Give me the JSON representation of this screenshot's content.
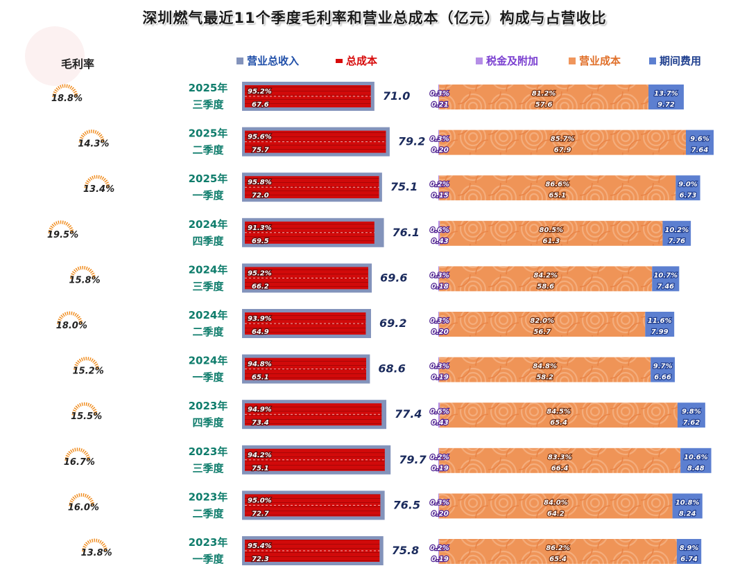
{
  "chart_data": {
    "type": "bar",
    "title": "深圳燃气最近11个季度毛利率和营业总成本（亿元）构成与占营收比",
    "gross_margin_header": "毛利率",
    "legend_left": [
      {
        "name": "营业总收入",
        "color": "#8393bb"
      },
      {
        "name": "总成本",
        "color": "#d70a0a"
      }
    ],
    "legend_right": [
      {
        "name": "税金及附加",
        "color": "#b58ee6"
      },
      {
        "name": "营业成本",
        "color": "#f0965c"
      },
      {
        "name": "期间费用",
        "color": "#5c7fd0"
      }
    ],
    "quarters": [
      {
        "year": "2025年",
        "season": "三季度",
        "gross_margin": "18.8%",
        "gm_value": 18.8,
        "revenue": 71.0,
        "revenue_label": "71.0",
        "cost_pct": "95.2%",
        "cost_label": "67.6",
        "cost": 67.6,
        "tax_pct": "0.3%",
        "tax_val": "0.21",
        "tax": 0.21,
        "op_pct": "81.2%",
        "op_val": "57.6",
        "op": 57.6,
        "exp_pct": "13.7%",
        "exp_val": "9.72",
        "exp": 9.72
      },
      {
        "year": "2025年",
        "season": "二季度",
        "gross_margin": "14.3%",
        "gm_value": 14.3,
        "revenue": 79.2,
        "revenue_label": "79.2",
        "cost_pct": "95.6%",
        "cost_label": "75.7",
        "cost": 75.7,
        "tax_pct": "0.3%",
        "tax_val": "0.20",
        "tax": 0.2,
        "op_pct": "85.7%",
        "op_val": "67.9",
        "op": 67.9,
        "exp_pct": "9.6%",
        "exp_val": "7.64",
        "exp": 7.64
      },
      {
        "year": "2025年",
        "season": "一季度",
        "gross_margin": "13.4%",
        "gm_value": 13.4,
        "revenue": 75.1,
        "revenue_label": "75.1",
        "cost_pct": "95.8%",
        "cost_label": "72.0",
        "cost": 72.0,
        "tax_pct": "0.2%",
        "tax_val": "0.15",
        "tax": 0.15,
        "op_pct": "86.6%",
        "op_val": "65.1",
        "op": 65.1,
        "exp_pct": "9.0%",
        "exp_val": "6.73",
        "exp": 6.73
      },
      {
        "year": "2024年",
        "season": "四季度",
        "gross_margin": "19.5%",
        "gm_value": 19.5,
        "revenue": 76.1,
        "revenue_label": "76.1",
        "cost_pct": "91.3%",
        "cost_label": "69.5",
        "cost": 69.5,
        "tax_pct": "0.6%",
        "tax_val": "0.43",
        "tax": 0.43,
        "op_pct": "80.5%",
        "op_val": "61.3",
        "op": 61.3,
        "exp_pct": "10.2%",
        "exp_val": "7.76",
        "exp": 7.76
      },
      {
        "year": "2024年",
        "season": "三季度",
        "gross_margin": "15.8%",
        "gm_value": 15.8,
        "revenue": 69.6,
        "revenue_label": "69.6",
        "cost_pct": "95.2%",
        "cost_label": "66.2",
        "cost": 66.2,
        "tax_pct": "0.3%",
        "tax_val": "0.18",
        "tax": 0.18,
        "op_pct": "84.2%",
        "op_val": "58.6",
        "op": 58.6,
        "exp_pct": "10.7%",
        "exp_val": "7.46",
        "exp": 7.46
      },
      {
        "year": "2024年",
        "season": "二季度",
        "gross_margin": "18.0%",
        "gm_value": 18.0,
        "revenue": 69.2,
        "revenue_label": "69.2",
        "cost_pct": "93.9%",
        "cost_label": "64.9",
        "cost": 64.9,
        "tax_pct": "0.3%",
        "tax_val": "0.20",
        "tax": 0.2,
        "op_pct": "82.0%",
        "op_val": "56.7",
        "op": 56.7,
        "exp_pct": "11.6%",
        "exp_val": "7.99",
        "exp": 7.99
      },
      {
        "year": "2024年",
        "season": "一季度",
        "gross_margin": "15.2%",
        "gm_value": 15.2,
        "revenue": 68.6,
        "revenue_label": "68.6",
        "cost_pct": "94.8%",
        "cost_label": "65.1",
        "cost": 65.1,
        "tax_pct": "0.3%",
        "tax_val": "0.19",
        "tax": 0.19,
        "op_pct": "84.8%",
        "op_val": "58.2",
        "op": 58.2,
        "exp_pct": "9.7%",
        "exp_val": "6.66",
        "exp": 6.66
      },
      {
        "year": "2023年",
        "season": "四季度",
        "gross_margin": "15.5%",
        "gm_value": 15.5,
        "revenue": 77.4,
        "revenue_label": "77.4",
        "cost_pct": "94.9%",
        "cost_label": "73.4",
        "cost": 73.4,
        "tax_pct": "0.6%",
        "tax_val": "0.43",
        "tax": 0.43,
        "op_pct": "84.5%",
        "op_val": "65.4",
        "op": 65.4,
        "exp_pct": "9.8%",
        "exp_val": "7.62",
        "exp": 7.62
      },
      {
        "year": "2023年",
        "season": "三季度",
        "gross_margin": "16.7%",
        "gm_value": 16.7,
        "revenue": 79.7,
        "revenue_label": "79.7",
        "cost_pct": "94.2%",
        "cost_label": "75.1",
        "cost": 75.1,
        "tax_pct": "0.2%",
        "tax_val": "0.19",
        "tax": 0.19,
        "op_pct": "83.3%",
        "op_val": "66.4",
        "op": 66.4,
        "exp_pct": "10.6%",
        "exp_val": "8.48",
        "exp": 8.48
      },
      {
        "year": "2023年",
        "season": "二季度",
        "gross_margin": "16.0%",
        "gm_value": 16.0,
        "revenue": 76.5,
        "revenue_label": "76.5",
        "cost_pct": "95.0%",
        "cost_label": "72.7",
        "cost": 72.7,
        "tax_pct": "0.3%",
        "tax_val": "0.20",
        "tax": 0.2,
        "op_pct": "84.0%",
        "op_val": "64.2",
        "op": 64.2,
        "exp_pct": "10.8%",
        "exp_val": "8.24",
        "exp": 8.24
      },
      {
        "year": "2023年",
        "season": "一季度",
        "gross_margin": "13.8%",
        "gm_value": 13.8,
        "revenue": 75.8,
        "revenue_label": "75.8",
        "cost_pct": "95.4%",
        "cost_label": "72.3",
        "cost": 72.3,
        "tax_pct": "0.2%",
        "tax_val": "0.19",
        "tax": 0.19,
        "op_pct": "86.2%",
        "op_val": "65.4",
        "op": 65.4,
        "exp_pct": "8.9%",
        "exp_val": "6.74",
        "exp": 6.74
      }
    ]
  }
}
